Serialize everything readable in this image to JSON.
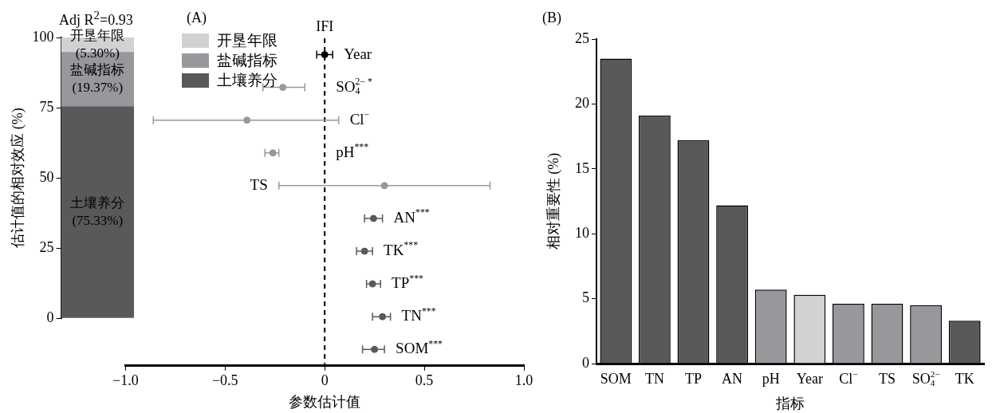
{
  "chart_data": [
    {
      "type": "bar",
      "stacked": true,
      "annotations": [
        "Adj R$^{2}$=0.93"
      ],
      "ylabel": "估计值的相对效应 (%)",
      "categories": [
        null
      ],
      "ylim": [
        0,
        100
      ],
      "yticks": [
        0,
        25,
        50,
        75,
        100
      ],
      "legend": "top right",
      "tick_labels": "y",
      "series": [
        {
          "name": "土壤养分",
          "color": "#59585a",
          "values": [
            75.33
          ],
          "value_labels": [
            "(75.33%)"
          ]
        },
        {
          "name": "盐碱指标",
          "color": "#98979c",
          "values": [
            19.37
          ],
          "value_labels": [
            "(19.37%)"
          ]
        },
        {
          "name": "开垦年限",
          "color": "#d2d2d4",
          "values": [
            5.3
          ],
          "value_labels": [
            "(5.30%)"
          ]
        }
      ]
    },
    {
      "type": "scatter",
      "title": "(A)",
      "orientation": "horizontal",
      "marker": "circle",
      "xlabel": "参数估计值",
      "tick_labels": "x",
      "categories": [
        "Year",
        "SO$_{4}$$^{2− *}$",
        "Cl$^{−}$",
        "pH$^{***}$",
        "TS",
        "AN$^{***}$",
        "TK$^{***}$",
        "TP$^{***}$",
        "TN$^{***}$",
        "SOM$^{***}$"
      ],
      "values": [
        0.0,
        -0.21,
        -0.39,
        -0.26,
        0.3,
        0.245,
        0.2,
        0.24,
        0.29,
        0.25
      ],
      "errors": [
        [
          -0.04,
          0.04
        ],
        [
          -0.31,
          -0.1
        ],
        [
          -0.86,
          0.07
        ],
        [
          -0.3,
          -0.23
        ],
        [
          -0.23,
          0.83
        ],
        [
          0.2,
          0.29
        ],
        [
          0.16,
          0.24
        ],
        [
          0.21,
          0.28
        ],
        [
          0.24,
          0.33
        ],
        [
          0.19,
          0.3
        ]
      ],
      "colors": [
        "#000000",
        "#98979c",
        "#98979c",
        "#98979c",
        "#98979c",
        "#59585a",
        "#59585a",
        "#59585a",
        "#59585a",
        "#59585a"
      ],
      "xlim": [
        -1,
        1
      ],
      "xticks": [
        {
          "value": -1,
          "label": "−1.0"
        },
        {
          "value": -0.5,
          "label": "−0.5"
        },
        0,
        0.5,
        {
          "value": 1,
          "label": "1.0"
        }
      ],
      "ref_lines": [
        {
          "axis": "x",
          "value": 0,
          "label": "IFI",
          "line_style": "dashed"
        }
      ]
    },
    {
      "type": "bar",
      "title": "(B)",
      "xlabel": "指标",
      "ylabel": "相对重要性 (%)",
      "categories": [
        "SOM",
        "TN",
        "TP",
        "AN",
        "pH",
        "Year",
        "Cl$^{−}$",
        "TS",
        "SO$_{4}$$^{2−}$",
        "TK"
      ],
      "values": [
        23.5,
        19.1,
        17.2,
        12.2,
        5.7,
        5.3,
        4.6,
        4.6,
        4.5,
        3.3
      ],
      "colors": [
        "#59585a",
        "#59585a",
        "#59585a",
        "#59585a",
        "#98979c",
        "#d2d2d4",
        "#98979c",
        "#98979c",
        "#98979c",
        "#59585a"
      ],
      "ylim": [
        0,
        25
      ],
      "yticks": [
        0,
        5,
        10,
        15,
        20,
        25
      ]
    }
  ]
}
